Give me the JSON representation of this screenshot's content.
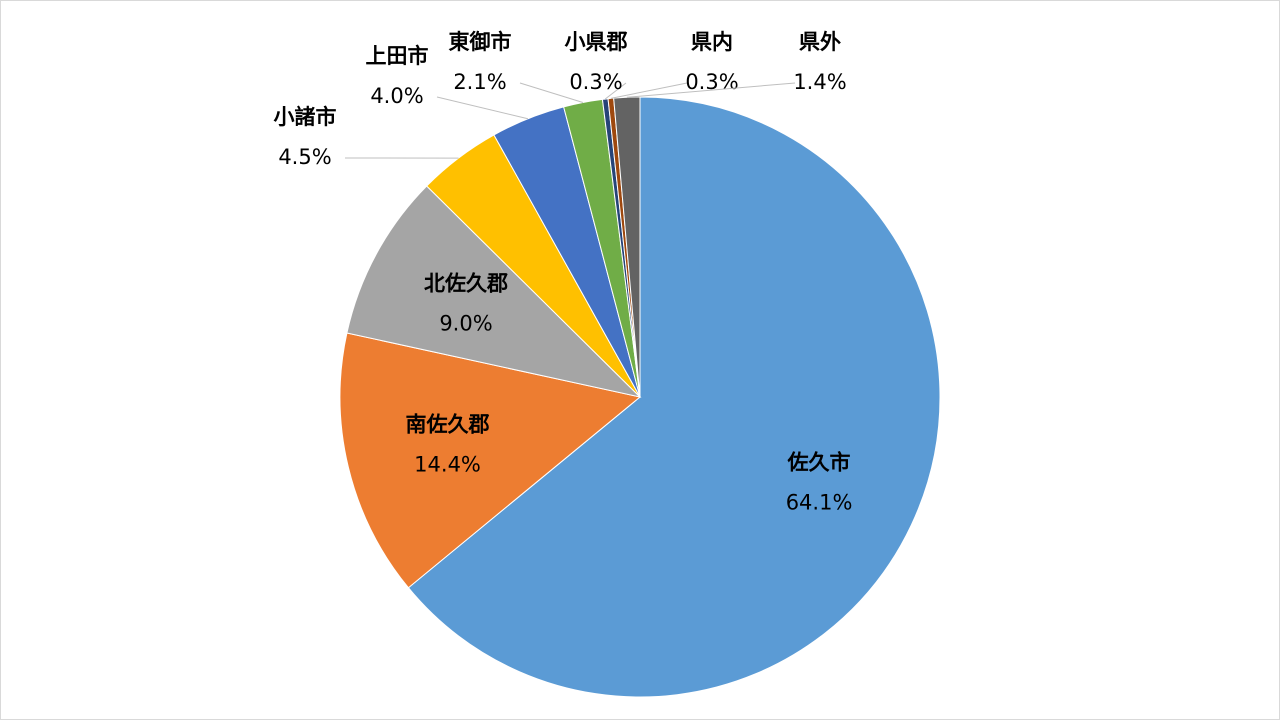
{
  "chart_data": {
    "type": "pie",
    "categories": [
      "佐久市",
      "南佐久郡",
      "北佐久郡",
      "小諸市",
      "上田市",
      "東御市",
      "小県郡",
      "県内",
      "県外"
    ],
    "values": [
      64.1,
      14.4,
      9.0,
      4.5,
      4.0,
      2.1,
      0.3,
      0.3,
      1.4
    ],
    "value_labels": [
      "64.1%",
      "14.4%",
      "9.0%",
      "4.5%",
      "4.0%",
      "2.1%",
      "0.3%",
      "0.3%",
      "1.4%"
    ],
    "colors": [
      "#5b9bd5",
      "#ed7d31",
      "#a5a5a5",
      "#ffc000",
      "#4472c4",
      "#70ad47",
      "#264478",
      "#9e480e",
      "#636363"
    ]
  }
}
